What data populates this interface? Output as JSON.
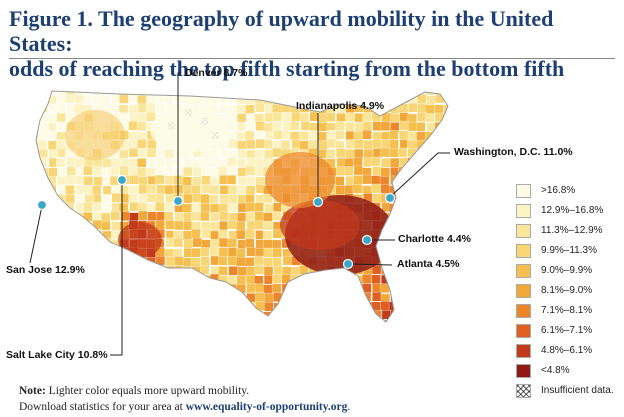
{
  "figure": {
    "title_line1": "Figure 1. The geography of upward mobility in the United States:",
    "title_line2": "odds of reaching the top fifth starting from the bottom fifth"
  },
  "cities": [
    {
      "id": "denver",
      "label": "Denver 8.7%"
    },
    {
      "id": "indianapolis",
      "label": "Indianapolis 4.9%"
    },
    {
      "id": "washington",
      "label": "Washington, D.C. 11.0%"
    },
    {
      "id": "san-jose",
      "label": "San Jose 12.9%"
    },
    {
      "id": "charlotte",
      "label": "Charlotte 4.4%"
    },
    {
      "id": "atlanta",
      "label": "Atlanta 4.5%"
    },
    {
      "id": "salt-lake-city",
      "label": "Salt Lake City 10.8%"
    }
  ],
  "legend": [
    {
      "label": ">16.8%",
      "color": "#fdfbe6"
    },
    {
      "label": "12.9%–16.8%",
      "color": "#fcf3c4"
    },
    {
      "label": "11.3%–12.9%",
      "color": "#fae69a"
    },
    {
      "label": "9.9%–11.3%",
      "color": "#f8d676"
    },
    {
      "label": "9.0%–9.9%",
      "color": "#f5c04f"
    },
    {
      "label": "8.1%–9.0%",
      "color": "#f2a73a"
    },
    {
      "label": "7.1%–8.1%",
      "color": "#ed852b"
    },
    {
      "label": "6.1%–7.1%",
      "color": "#df5f22"
    },
    {
      "label": "4.8%–6.1%",
      "color": "#c23a1c"
    },
    {
      "label": "<4.8%",
      "color": "#8e1b17"
    },
    {
      "label": "Insufficient data.",
      "color": "pattern"
    }
  ],
  "note": {
    "label": "Note:",
    "text": " Lighter color equals more upward mobility.",
    "download_prefix": "Download statistics for your area at ",
    "link": "www.equality-of-opportunity.org",
    "link_suffix": "."
  }
}
